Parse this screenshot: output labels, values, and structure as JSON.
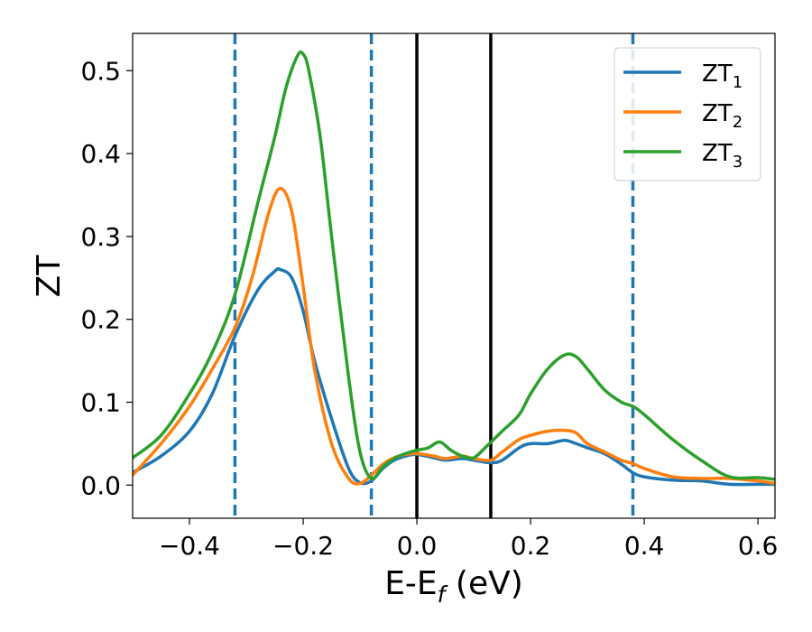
{
  "chart_data": {
    "type": "line",
    "xlabel": "E-E",
    "xlabel_sub": "f",
    "xlabel_unit": " (eV)",
    "ylabel": "ZT",
    "xlim": [
      -0.5,
      0.63
    ],
    "ylim": [
      -0.04,
      0.545
    ],
    "xticks": [
      -0.4,
      -0.2,
      0.0,
      0.2,
      0.4,
      0.6
    ],
    "xtick_labels": [
      "−0.4",
      "−0.2",
      "0.0",
      "0.2",
      "0.4",
      "0.6"
    ],
    "yticks": [
      0.0,
      0.1,
      0.2,
      0.3,
      0.4,
      0.5
    ],
    "ytick_labels": [
      "0.0",
      "0.1",
      "0.2",
      "0.3",
      "0.4",
      "0.5"
    ],
    "grid": false,
    "legend_position": "top-right",
    "vlines_dashed": [
      -0.32,
      -0.08,
      0.38
    ],
    "vlines_solid": [
      0.0,
      0.13
    ],
    "dashed_color": "#1f77b4",
    "solid_color": "#000000",
    "series": [
      {
        "name": "ZT",
        "subscript": "1",
        "color": "#1f77b4",
        "x": [
          -0.5,
          -0.45,
          -0.4,
          -0.36,
          -0.32,
          -0.28,
          -0.25,
          -0.24,
          -0.22,
          -0.2,
          -0.18,
          -0.15,
          -0.12,
          -0.1,
          -0.08,
          -0.06,
          -0.04,
          -0.02,
          0.0,
          0.03,
          0.05,
          0.08,
          0.1,
          0.13,
          0.15,
          0.18,
          0.2,
          0.23,
          0.26,
          0.28,
          0.3,
          0.33,
          0.36,
          0.38,
          0.4,
          0.45,
          0.5,
          0.55,
          0.6,
          0.63
        ],
        "y": [
          0.015,
          0.035,
          0.065,
          0.11,
          0.18,
          0.235,
          0.258,
          0.26,
          0.25,
          0.21,
          0.15,
          0.08,
          0.02,
          0.003,
          0.005,
          0.02,
          0.03,
          0.035,
          0.037,
          0.033,
          0.03,
          0.032,
          0.03,
          0.027,
          0.03,
          0.045,
          0.05,
          0.05,
          0.054,
          0.05,
          0.045,
          0.038,
          0.025,
          0.015,
          0.01,
          0.006,
          0.005,
          0.001,
          0.001,
          0.001
        ]
      },
      {
        "name": "ZT",
        "subscript": "2",
        "color": "#ff7f0e",
        "x": [
          -0.5,
          -0.45,
          -0.4,
          -0.36,
          -0.32,
          -0.29,
          -0.26,
          -0.24,
          -0.22,
          -0.2,
          -0.18,
          -0.15,
          -0.12,
          -0.1,
          -0.08,
          -0.06,
          -0.04,
          -0.02,
          0.0,
          0.03,
          0.05,
          0.08,
          0.1,
          0.13,
          0.15,
          0.18,
          0.2,
          0.23,
          0.26,
          0.28,
          0.3,
          0.33,
          0.36,
          0.38,
          0.4,
          0.45,
          0.5,
          0.55,
          0.6,
          0.63
        ],
        "y": [
          0.012,
          0.05,
          0.095,
          0.14,
          0.19,
          0.25,
          0.33,
          0.358,
          0.33,
          0.24,
          0.14,
          0.05,
          0.008,
          0.002,
          0.012,
          0.025,
          0.033,
          0.037,
          0.038,
          0.035,
          0.032,
          0.035,
          0.032,
          0.03,
          0.04,
          0.055,
          0.06,
          0.065,
          0.066,
          0.063,
          0.05,
          0.04,
          0.03,
          0.026,
          0.02,
          0.01,
          0.008,
          0.008,
          0.005,
          0.002
        ]
      },
      {
        "name": "ZT",
        "subscript": "3",
        "color": "#2ca02c",
        "x": [
          -0.5,
          -0.45,
          -0.4,
          -0.36,
          -0.32,
          -0.28,
          -0.25,
          -0.23,
          -0.21,
          -0.2,
          -0.19,
          -0.17,
          -0.15,
          -0.12,
          -0.1,
          -0.08,
          -0.06,
          -0.04,
          -0.02,
          0.0,
          0.02,
          0.04,
          0.06,
          0.08,
          0.1,
          0.12,
          0.15,
          0.18,
          0.2,
          0.23,
          0.26,
          0.28,
          0.3,
          0.33,
          0.36,
          0.38,
          0.4,
          0.45,
          0.5,
          0.55,
          0.6,
          0.63
        ],
        "y": [
          0.033,
          0.06,
          0.11,
          0.16,
          0.23,
          0.34,
          0.42,
          0.48,
          0.518,
          0.52,
          0.5,
          0.42,
          0.3,
          0.13,
          0.04,
          0.008,
          0.022,
          0.032,
          0.038,
          0.042,
          0.045,
          0.052,
          0.042,
          0.035,
          0.033,
          0.045,
          0.065,
          0.085,
          0.11,
          0.14,
          0.157,
          0.155,
          0.14,
          0.115,
          0.1,
          0.095,
          0.085,
          0.055,
          0.03,
          0.01,
          0.009,
          0.007
        ]
      }
    ]
  }
}
